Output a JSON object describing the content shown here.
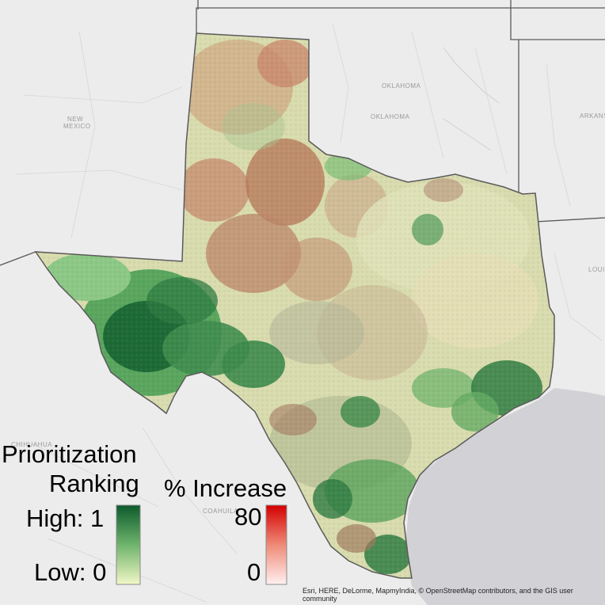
{
  "basemap": {
    "place_labels": [
      "NEW",
      "MEXICO",
      "OKLAHOMA",
      "OKLAHOMA",
      "ARKANS",
      "LOUI",
      "CHIHUAHUA",
      "COAHUILA"
    ],
    "water_color": "#d2d2d6",
    "land_color": "#ececec"
  },
  "legend": {
    "priority": {
      "title_line1": "Prioritization",
      "title_line2": "Ranking",
      "high_label": "High: 1",
      "low_label": "Low: 0",
      "high_color": "#0c5a2c",
      "low_color": "#f2f6c6"
    },
    "increase": {
      "title": "% Increase",
      "max_label": "80",
      "min_label": "0",
      "max_color": "#d40000",
      "min_color": "#fff0f0"
    }
  },
  "attribution": {
    "line1": "Esri, HERE, DeLorme, MapmyIndia, © OpenStreetMap contributors, and the GIS user",
    "line2": "community"
  }
}
